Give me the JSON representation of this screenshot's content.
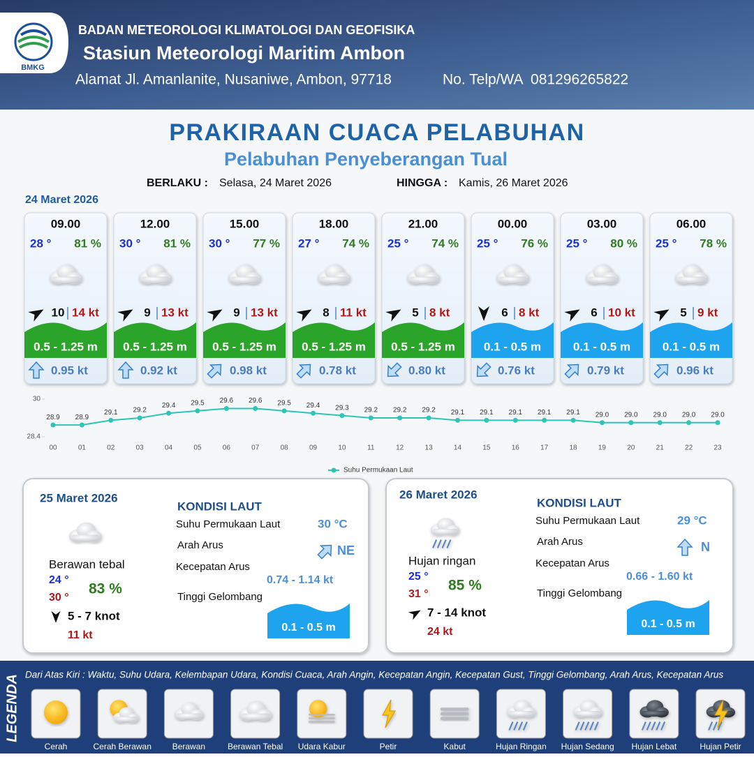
{
  "header": {
    "logo": "BMKG",
    "agency": "BADAN METEOROLOGI KLIMATOLOGI DAN GEOFISIKA",
    "station": "Stasiun Meteorologi Maritim Ambon",
    "address": "Alamat Jl. Amanlanite, Nusaniwe, Ambon, 97718",
    "phone": "No. Telp/WA  081296265822"
  },
  "title": "PRAKIRAAN CUACA PELABUHAN",
  "subtitle": "Pelabuhan Penyeberangan Tual",
  "validity": {
    "from_label": "BERLAKU :",
    "from": "Selasa, 24 Maret 2026",
    "to_label": "HINGGA :",
    "to": "Kamis, 26 Maret 2026"
  },
  "day1": {
    "date": "24 Maret 2026",
    "slots": [
      {
        "time": "09.00",
        "temp": "28 °",
        "humidity": "81 %",
        "wind": "10",
        "gust": "14 kt",
        "wave": "0.5 - 1.25 m",
        "current": "0.95 kt"
      },
      {
        "time": "12.00",
        "temp": "30 °",
        "humidity": "81 %",
        "wind": "9",
        "gust": "13 kt",
        "wave": "0.5 - 1.25 m",
        "current": "0.92 kt"
      },
      {
        "time": "15.00",
        "temp": "30 °",
        "humidity": "77 %",
        "wind": "9",
        "gust": "13 kt",
        "wave": "0.5 - 1.25 m",
        "current": "0.98 kt"
      },
      {
        "time": "18.00",
        "temp": "27 °",
        "humidity": "74 %",
        "wind": "8",
        "gust": "11 kt",
        "wave": "0.5 - 1.25 m",
        "current": "0.78 kt"
      },
      {
        "time": "21.00",
        "temp": "25 °",
        "humidity": "74 %",
        "wind": "5",
        "gust": "8 kt",
        "wave": "0.5 - 1.25 m",
        "current": "0.80 kt"
      },
      {
        "time": "00.00",
        "temp": "25 °",
        "humidity": "76 %",
        "wind": "6",
        "gust": "8 kt",
        "wave": "0.1 - 0.5 m",
        "current": "0.76 kt"
      },
      {
        "time": "03.00",
        "temp": "25 °",
        "humidity": "80 %",
        "wind": "6",
        "gust": "10 kt",
        "wave": "0.1 - 0.5 m",
        "current": "0.79 kt"
      },
      {
        "time": "06.00",
        "temp": "25 °",
        "humidity": "78 %",
        "wind": "5",
        "gust": "9 kt",
        "wave": "0.1 - 0.5 m",
        "current": "0.96 kt"
      }
    ]
  },
  "chart_data": {
    "type": "line",
    "categories": [
      "00",
      "01",
      "02",
      "03",
      "04",
      "05",
      "06",
      "07",
      "08",
      "09",
      "10",
      "11",
      "12",
      "13",
      "14",
      "15",
      "16",
      "17",
      "18",
      "19",
      "20",
      "21",
      "22",
      "23"
    ],
    "series": [
      {
        "name": "Suhu Permukaan Laut",
        "color": "#2ec4b6",
        "values": [
          28.9,
          28.9,
          29.1,
          29.2,
          29.4,
          29.5,
          29.6,
          29.6,
          29.5,
          29.4,
          29.3,
          29.2,
          29.2,
          29.2,
          29.1,
          29.1,
          29.1,
          29.1,
          29.1,
          29.0,
          29.0,
          29.0,
          29.0,
          29.0
        ],
        "value_labels": [
          "28.9",
          "28.9",
          "29.1",
          "29.2",
          "29.4",
          "29.5",
          "29.6",
          "29.6",
          "29.5",
          "29.4",
          "29.3",
          "29.2",
          "29.2",
          "29.2",
          "29.1",
          "29.1",
          "29.1",
          "29.1",
          "29.1",
          "29.0",
          "29.0",
          "29.0",
          "29.0",
          "29.0"
        ]
      }
    ],
    "ylim": [
      28.4,
      30
    ],
    "yticks": [
      28.4,
      30
    ],
    "grid": false,
    "legend": "bottom"
  },
  "outlook": [
    {
      "date": "25 Maret 2026",
      "sea_title": "KONDISI LAUT",
      "sst_label": "Suhu Permukaan Laut",
      "sst": "30 °C",
      "current_dir_label": "Arah Arus",
      "current_dir": "NE",
      "current_speed_label": "Kecepatan Arus",
      "current_speed": "0.74 - 1.14 kt",
      "wave_label": "Tinggi Gelombang",
      "wave": "0.1 - 0.5 m",
      "weather": "Berawan tebal",
      "temp_min": "24 °",
      "temp_max": "30 °",
      "humidity": "83 %",
      "wind": "5  - 7 knot",
      "gust": "11 kt"
    },
    {
      "date": "26 Maret 2026",
      "sea_title": "KONDISI LAUT",
      "sst_label": "Suhu Permukaan Laut",
      "sst": "29 °C",
      "current_dir_label": "Arah Arus",
      "current_dir": "N",
      "current_speed_label": "Kecepatan Arus",
      "current_speed": "0.66 - 1.60 kt",
      "wave_label": "Tinggi Gelombang",
      "wave": "0.1 - 0.5 m",
      "weather": "Hujan ringan",
      "temp_min": "25 °",
      "temp_max": "31 °",
      "humidity": "85 %",
      "wind": "7  - 14 knot",
      "gust": "24 kt"
    }
  ],
  "legend": {
    "title": "LEGENDA",
    "note": "Dari Atas Kiri : Waktu, Suhu Udara, Kelembapan Udara, Kondisi Cuaca, Arah Angin, Kecepatan Angin, Kecepatan Gust, Tinggi Gelombang, Arah Arus, Kecepatan Arus",
    "items": [
      "Cerah",
      "Cerah Berawan",
      "Berawan",
      "Berawan Tebal",
      "Udara Kabur",
      "Petir",
      "Kabut",
      "Hujan Ringan",
      "Hujan Sedang",
      "Hujan Lebat",
      "Hujan Petir"
    ]
  }
}
